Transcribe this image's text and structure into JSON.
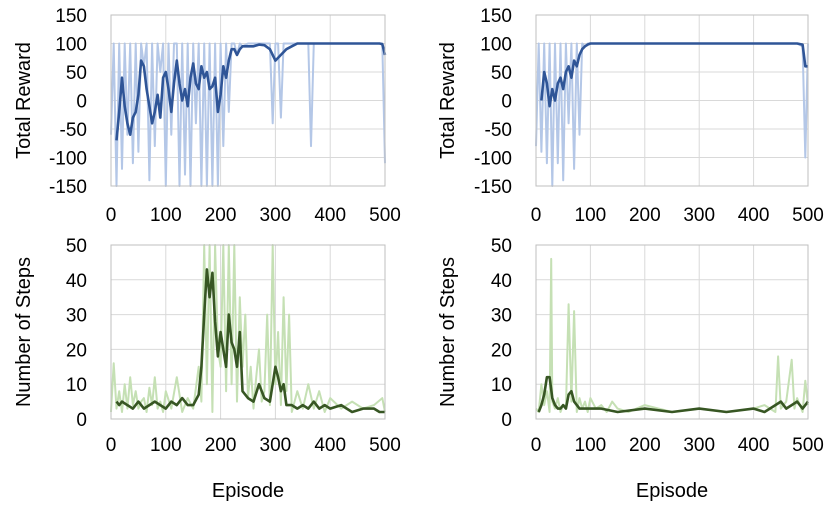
{
  "chart_data": [
    {
      "type": "line",
      "xlabel": "",
      "ylabel": "Total Reward",
      "xlim": [
        0,
        500
      ],
      "ylim": [
        -150,
        150
      ],
      "xticks": [
        "0",
        "100",
        "200",
        "300",
        "400",
        "500"
      ],
      "yticks": [
        "150",
        "100",
        "50",
        "0",
        "-50",
        "-100",
        "-150"
      ],
      "grid": true,
      "series": [
        {
          "role": "raw",
          "color": "#b4c7e7",
          "x": [
            0,
            5,
            10,
            15,
            20,
            25,
            30,
            35,
            40,
            45,
            50,
            55,
            60,
            65,
            70,
            75,
            80,
            85,
            90,
            95,
            100,
            105,
            110,
            115,
            120,
            125,
            130,
            135,
            140,
            145,
            150,
            155,
            160,
            165,
            170,
            175,
            180,
            185,
            190,
            195,
            200,
            205,
            210,
            215,
            220,
            225,
            230,
            235,
            240,
            250,
            260,
            270,
            280,
            290,
            295,
            300,
            305,
            310,
            315,
            320,
            325,
            330,
            340,
            350,
            360,
            365,
            370,
            380,
            390,
            400,
            420,
            440,
            460,
            480,
            495,
            500
          ],
          "values": [
            -60,
            100,
            -150,
            100,
            -120,
            100,
            -60,
            100,
            -110,
            100,
            -90,
            100,
            60,
            100,
            -140,
            100,
            -80,
            100,
            50,
            100,
            -150,
            100,
            -60,
            100,
            100,
            -150,
            100,
            -130,
            100,
            -150,
            100,
            -40,
            100,
            -150,
            100,
            -150,
            100,
            -150,
            100,
            -150,
            100,
            -80,
            100,
            -20,
            100,
            100,
            80,
            100,
            95,
            100,
            100,
            100,
            100,
            100,
            -40,
            100,
            100,
            -30,
            100,
            100,
            100,
            100,
            100,
            100,
            100,
            -80,
            100,
            100,
            100,
            100,
            100,
            100,
            100,
            100,
            100,
            -110
          ]
        },
        {
          "role": "moving-average",
          "color": "#2f5597",
          "x": [
            10,
            15,
            20,
            25,
            30,
            35,
            40,
            45,
            50,
            55,
            60,
            65,
            70,
            75,
            80,
            85,
            90,
            95,
            100,
            105,
            110,
            115,
            120,
            125,
            130,
            135,
            140,
            145,
            150,
            155,
            160,
            165,
            170,
            175,
            180,
            185,
            190,
            195,
            200,
            205,
            210,
            215,
            220,
            225,
            230,
            235,
            240,
            250,
            260,
            270,
            280,
            290,
            300,
            310,
            320,
            330,
            340,
            350,
            360,
            370,
            380,
            390,
            400,
            420,
            440,
            460,
            480,
            490,
            495,
            500
          ],
          "values": [
            -70,
            -20,
            40,
            -10,
            -40,
            -60,
            -30,
            -20,
            10,
            70,
            60,
            20,
            -10,
            -40,
            -20,
            10,
            -30,
            40,
            50,
            20,
            -20,
            30,
            70,
            30,
            0,
            20,
            -10,
            40,
            65,
            30,
            20,
            60,
            40,
            50,
            20,
            25,
            40,
            -20,
            10,
            60,
            40,
            70,
            90,
            90,
            80,
            90,
            95,
            95,
            95,
            98,
            97,
            90,
            70,
            80,
            90,
            95,
            100,
            100,
            100,
            100,
            100,
            100,
            100,
            100,
            100,
            100,
            100,
            100,
            99,
            80
          ]
        }
      ]
    },
    {
      "type": "line",
      "xlabel": "",
      "ylabel": "Total Reward",
      "xlim": [
        0,
        500
      ],
      "ylim": [
        -150,
        150
      ],
      "xticks": [
        "0",
        "100",
        "200",
        "300",
        "400",
        "500"
      ],
      "yticks": [
        "150",
        "100",
        "50",
        "0",
        "-50",
        "-100",
        "-150"
      ],
      "grid": true,
      "series": [
        {
          "role": "raw",
          "color": "#b4c7e7",
          "x": [
            0,
            5,
            10,
            15,
            20,
            25,
            30,
            35,
            40,
            45,
            50,
            55,
            60,
            65,
            70,
            75,
            80,
            85,
            90,
            95,
            100,
            110,
            150,
            200,
            250,
            300,
            350,
            400,
            450,
            480,
            490,
            495,
            500
          ],
          "values": [
            -80,
            100,
            -90,
            100,
            -110,
            100,
            -150,
            100,
            -110,
            100,
            -140,
            100,
            -40,
            100,
            -120,
            100,
            -60,
            100,
            95,
            100,
            100,
            100,
            100,
            100,
            100,
            100,
            100,
            100,
            100,
            100,
            95,
            -100,
            100
          ]
        },
        {
          "role": "moving-average",
          "color": "#2f5597",
          "x": [
            10,
            15,
            20,
            25,
            30,
            35,
            40,
            45,
            50,
            55,
            60,
            65,
            70,
            75,
            80,
            85,
            90,
            95,
            100,
            110,
            120,
            150,
            200,
            250,
            300,
            350,
            400,
            450,
            480,
            490,
            495,
            500
          ],
          "values": [
            0,
            50,
            30,
            -10,
            20,
            0,
            30,
            40,
            20,
            50,
            60,
            40,
            70,
            60,
            80,
            90,
            95,
            98,
            100,
            100,
            100,
            100,
            100,
            100,
            100,
            100,
            100,
            100,
            100,
            98,
            60,
            60
          ]
        }
      ]
    },
    {
      "type": "line",
      "xlabel": "Episode",
      "ylabel": "Number of Steps",
      "xlim": [
        0,
        500
      ],
      "ylim": [
        0,
        50
      ],
      "xticks": [
        "0",
        "100",
        "200",
        "300",
        "400",
        "500"
      ],
      "yticks": [
        "50",
        "40",
        "30",
        "20",
        "10",
        "0"
      ],
      "grid": true,
      "series": [
        {
          "role": "raw",
          "color": "#c5e0b4",
          "x": [
            0,
            5,
            10,
            15,
            20,
            25,
            30,
            35,
            40,
            45,
            50,
            55,
            60,
            65,
            70,
            75,
            80,
            85,
            90,
            95,
            100,
            110,
            120,
            130,
            140,
            150,
            160,
            165,
            170,
            175,
            180,
            185,
            190,
            195,
            200,
            205,
            210,
            215,
            220,
            225,
            230,
            235,
            240,
            245,
            250,
            255,
            260,
            265,
            270,
            275,
            280,
            285,
            290,
            295,
            300,
            305,
            310,
            315,
            320,
            325,
            330,
            340,
            350,
            360,
            370,
            380,
            390,
            400,
            420,
            440,
            460,
            480,
            495,
            500
          ],
          "values": [
            2,
            16,
            3,
            8,
            2,
            10,
            3,
            12,
            4,
            8,
            3,
            5,
            6,
            2,
            9,
            4,
            12,
            3,
            5,
            2,
            8,
            3,
            12,
            2,
            6,
            3,
            15,
            5,
            50,
            10,
            50,
            2,
            50,
            20,
            15,
            50,
            8,
            50,
            10,
            50,
            5,
            35,
            15,
            30,
            6,
            15,
            3,
            12,
            20,
            5,
            8,
            30,
            4,
            50,
            10,
            25,
            4,
            35,
            8,
            30,
            2,
            8,
            3,
            10,
            3,
            8,
            2,
            6,
            3,
            5,
            3,
            4,
            6,
            2
          ]
        },
        {
          "role": "moving-average",
          "color": "#375623",
          "x": [
            10,
            15,
            20,
            30,
            40,
            50,
            60,
            70,
            80,
            90,
            100,
            110,
            120,
            130,
            140,
            150,
            160,
            165,
            170,
            175,
            180,
            185,
            190,
            195,
            200,
            205,
            210,
            215,
            220,
            225,
            230,
            235,
            240,
            250,
            260,
            270,
            280,
            290,
            300,
            305,
            310,
            315,
            320,
            330,
            340,
            350,
            360,
            370,
            380,
            390,
            400,
            420,
            440,
            460,
            480,
            490,
            500
          ],
          "values": [
            5,
            4,
            5,
            4,
            3,
            5,
            3,
            4,
            5,
            4,
            3,
            5,
            4,
            6,
            4,
            4,
            7,
            15,
            30,
            43,
            35,
            42,
            28,
            18,
            25,
            20,
            15,
            30,
            22,
            20,
            15,
            25,
            8,
            6,
            5,
            10,
            6,
            5,
            15,
            12,
            8,
            10,
            4,
            4,
            3,
            4,
            3,
            5,
            3,
            4,
            3,
            4,
            2,
            3,
            3,
            2,
            2
          ]
        }
      ]
    },
    {
      "type": "line",
      "xlabel": "Episode",
      "ylabel": "Number of Steps",
      "xlim": [
        0,
        500
      ],
      "ylim": [
        0,
        50
      ],
      "xticks": [
        "0",
        "100",
        "200",
        "300",
        "400",
        "500"
      ],
      "yticks": [
        "50",
        "40",
        "30",
        "20",
        "10",
        "0"
      ],
      "grid": true,
      "series": [
        {
          "role": "raw",
          "color": "#c5e0b4",
          "x": [
            0,
            5,
            10,
            15,
            20,
            25,
            28,
            30,
            35,
            40,
            45,
            50,
            55,
            60,
            65,
            70,
            75,
            80,
            85,
            90,
            95,
            100,
            110,
            120,
            130,
            140,
            150,
            170,
            200,
            250,
            300,
            350,
            400,
            420,
            440,
            445,
            450,
            460,
            470,
            475,
            480,
            490,
            495,
            500
          ],
          "values": [
            3,
            2,
            10,
            4,
            8,
            2,
            46,
            5,
            3,
            6,
            2,
            4,
            3,
            33,
            5,
            31,
            2,
            6,
            3,
            5,
            2,
            6,
            3,
            4,
            2,
            5,
            3,
            2,
            4,
            2,
            3,
            2,
            3,
            4,
            2,
            18,
            3,
            5,
            17,
            3,
            6,
            2,
            11,
            4
          ]
        },
        {
          "role": "moving-average",
          "color": "#375623",
          "x": [
            5,
            10,
            15,
            20,
            25,
            30,
            35,
            40,
            45,
            50,
            55,
            60,
            65,
            70,
            75,
            80,
            90,
            100,
            120,
            150,
            200,
            250,
            300,
            350,
            400,
            420,
            440,
            450,
            460,
            470,
            480,
            490,
            500
          ],
          "values": [
            2,
            4,
            7,
            12,
            12,
            6,
            4,
            3,
            3,
            4,
            3,
            7,
            8,
            5,
            4,
            3,
            3,
            3,
            3,
            2,
            3,
            2,
            3,
            2,
            3,
            2,
            4,
            5,
            3,
            4,
            5,
            3,
            5
          ]
        }
      ]
    }
  ]
}
